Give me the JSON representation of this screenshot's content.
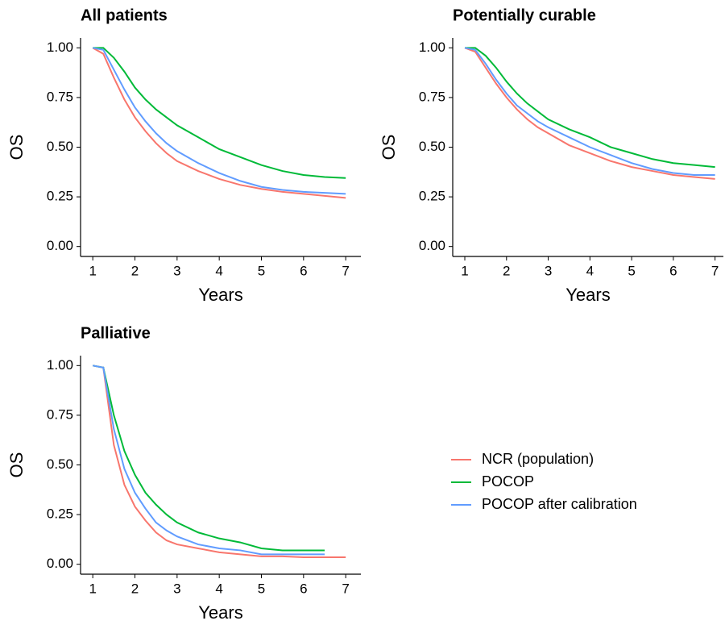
{
  "chart_data": [
    {
      "type": "line",
      "title": "All patients",
      "xlabel": "Years",
      "ylabel": "OS",
      "x": [
        1,
        1.25,
        1.5,
        1.75,
        2,
        2.25,
        2.5,
        2.75,
        3,
        3.5,
        4,
        4.5,
        5,
        5.5,
        6,
        6.5,
        7
      ],
      "xlim": [
        0.71,
        7.36
      ],
      "ylim": [
        -0.05,
        1.05
      ],
      "xticks": [
        1,
        2,
        3,
        4,
        5,
        6,
        7
      ],
      "yticks": [
        {
          "value": 0,
          "label": "0.00"
        },
        {
          "value": 0.25,
          "label": "0.25"
        },
        {
          "value": 0.5,
          "label": "0.50"
        },
        {
          "value": 0.75,
          "label": "0.75"
        },
        {
          "value": 1,
          "label": "1.00"
        }
      ],
      "series": [
        {
          "name": "NCR (population)",
          "color": "#f8766d",
          "values": [
            1,
            0.97,
            0.85,
            0.74,
            0.65,
            0.58,
            0.52,
            0.47,
            0.43,
            0.38,
            0.34,
            0.31,
            0.29,
            0.275,
            0.265,
            0.255,
            0.245
          ]
        },
        {
          "name": "POCOP",
          "color": "#00ba38",
          "values": [
            1,
            1,
            0.95,
            0.88,
            0.8,
            0.74,
            0.69,
            0.65,
            0.61,
            0.55,
            0.49,
            0.45,
            0.41,
            0.38,
            0.36,
            0.35,
            0.345
          ]
        },
        {
          "name": "POCOP after calibration",
          "color": "#619cff",
          "values": [
            1,
            0.99,
            0.89,
            0.79,
            0.7,
            0.63,
            0.57,
            0.52,
            0.48,
            0.42,
            0.37,
            0.33,
            0.3,
            0.285,
            0.275,
            0.27,
            0.265
          ]
        }
      ]
    },
    {
      "type": "line",
      "title": "Potentially curable",
      "xlabel": "Years",
      "ylabel": "OS",
      "x": [
        1,
        1.25,
        1.5,
        1.75,
        2,
        2.25,
        2.5,
        2.75,
        3,
        3.5,
        4,
        4.5,
        5,
        5.5,
        6,
        6.5,
        7
      ],
      "xlim": [
        0.71,
        7.2
      ],
      "ylim": [
        -0.05,
        1.05
      ],
      "xticks": [
        1,
        2,
        3,
        4,
        5,
        6,
        7
      ],
      "yticks": [
        {
          "value": 0,
          "label": "0.00"
        },
        {
          "value": 0.25,
          "label": "0.25"
        },
        {
          "value": 0.5,
          "label": "0.50"
        },
        {
          "value": 0.75,
          "label": "0.75"
        },
        {
          "value": 1,
          "label": "1.00"
        }
      ],
      "series": [
        {
          "color": "#f8766d",
          "values": [
            1,
            0.98,
            0.9,
            0.82,
            0.75,
            0.69,
            0.64,
            0.6,
            0.57,
            0.51,
            0.47,
            0.43,
            0.4,
            0.38,
            0.36,
            0.35,
            0.34
          ]
        },
        {
          "color": "#00ba38",
          "values": [
            1,
            1,
            0.96,
            0.9,
            0.83,
            0.77,
            0.72,
            0.68,
            0.64,
            0.59,
            0.55,
            0.5,
            0.47,
            0.44,
            0.42,
            0.41,
            0.4
          ]
        },
        {
          "color": "#619cff",
          "values": [
            1,
            0.99,
            0.92,
            0.84,
            0.77,
            0.71,
            0.67,
            0.63,
            0.6,
            0.55,
            0.5,
            0.46,
            0.42,
            0.39,
            0.37,
            0.36,
            0.36
          ]
        }
      ]
    },
    {
      "type": "line",
      "title": "Palliative",
      "xlabel": "Years",
      "ylabel": "OS",
      "x": [
        1,
        1.25,
        1.5,
        1.75,
        2,
        2.25,
        2.5,
        2.75,
        3,
        3.5,
        4,
        4.5,
        5,
        5.5,
        6,
        6.5,
        7
      ],
      "xlim": [
        0.71,
        7.36
      ],
      "ylim": [
        -0.05,
        1.05
      ],
      "xticks": [
        1,
        2,
        3,
        4,
        5,
        6,
        7
      ],
      "yticks": [
        {
          "value": 0,
          "label": "0.00"
        },
        {
          "value": 0.25,
          "label": "0.25"
        },
        {
          "value": 0.5,
          "label": "0.50"
        },
        {
          "value": 0.75,
          "label": "0.75"
        },
        {
          "value": 1,
          "label": "1.00"
        }
      ],
      "series": [
        {
          "color": "#f8766d",
          "values": [
            1,
            0.99,
            0.6,
            0.4,
            0.29,
            0.22,
            0.16,
            0.12,
            0.1,
            0.08,
            0.06,
            0.05,
            0.04,
            0.04,
            0.035,
            0.035,
            0.035
          ]
        },
        {
          "color": "#00ba38",
          "values": [
            1,
            0.99,
            0.75,
            0.57,
            0.45,
            0.36,
            0.3,
            0.25,
            0.21,
            0.16,
            0.13,
            0.11,
            0.08,
            0.07,
            0.07,
            0.07,
            null
          ]
        },
        {
          "color": "#619cff",
          "values": [
            1,
            0.99,
            0.68,
            0.48,
            0.36,
            0.28,
            0.21,
            0.17,
            0.14,
            0.1,
            0.08,
            0.07,
            0.05,
            0.05,
            0.05,
            0.05,
            null
          ]
        }
      ]
    }
  ]
}
